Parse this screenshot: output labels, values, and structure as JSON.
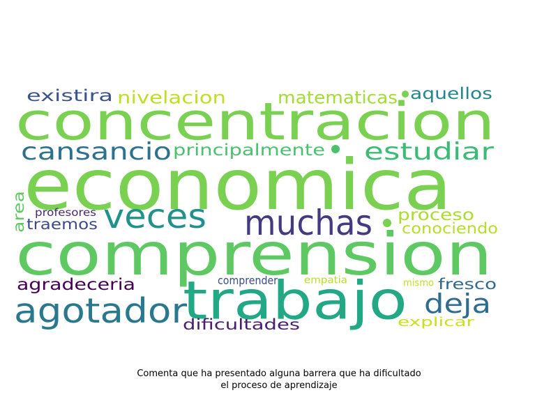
{
  "words": [
    {
      "text": "concentracion",
      "color": "#7ad151"
    },
    {
      "text": "economica",
      "color": "#7ad151"
    },
    {
      "text": "comprension",
      "color": "#5ec962"
    },
    {
      "text": "trabajo",
      "color": "#22a884"
    },
    {
      "text": "agotador",
      "color": "#2a788e"
    },
    {
      "text": "muchas",
      "color": "#443983"
    },
    {
      "text": "veces",
      "color": "#21918c"
    },
    {
      "text": "cansancio",
      "color": "#2c728e"
    },
    {
      "text": "estudiar",
      "color": "#3bbb75"
    },
    {
      "text": "principalmente",
      "color": "#4ac16d"
    },
    {
      "text": "existira",
      "color": "#3b528b"
    },
    {
      "text": "nivelacion",
      "color": "#bddf26"
    },
    {
      "text": "matematicas",
      "color": "#a5db36"
    },
    {
      "text": "aquellos",
      "color": "#25858e"
    },
    {
      "text": "deja",
      "color": "#2f6c8e"
    },
    {
      "text": "proceso",
      "color": "#addc30"
    },
    {
      "text": "conociendo",
      "color": "#b5de2b"
    },
    {
      "text": "traemos",
      "color": "#3e4a89"
    },
    {
      "text": "profesores",
      "color": "#482878"
    },
    {
      "text": "area",
      "color": "#5ec962"
    },
    {
      "text": "agradeceria",
      "color": "#440154"
    },
    {
      "text": "fresco",
      "color": "#31688e"
    },
    {
      "text": "dificultades",
      "color": "#481f70"
    },
    {
      "text": "comprender",
      "color": "#3e4989"
    },
    {
      "text": "empatia",
      "color": "#b8de29"
    },
    {
      "text": "mismo",
      "color": "#c2df23"
    },
    {
      "text": "explicar",
      "color": "#c8e020"
    }
  ],
  "dots": [
    {
      "color": "#7ad151"
    },
    {
      "color": "#4ac16d"
    },
    {
      "color": "#7ad151"
    }
  ],
  "caption": {
    "line1": "Comenta que ha presentado alguna barrera que ha dificultado",
    "line2": "el proceso de aprendizaje"
  }
}
